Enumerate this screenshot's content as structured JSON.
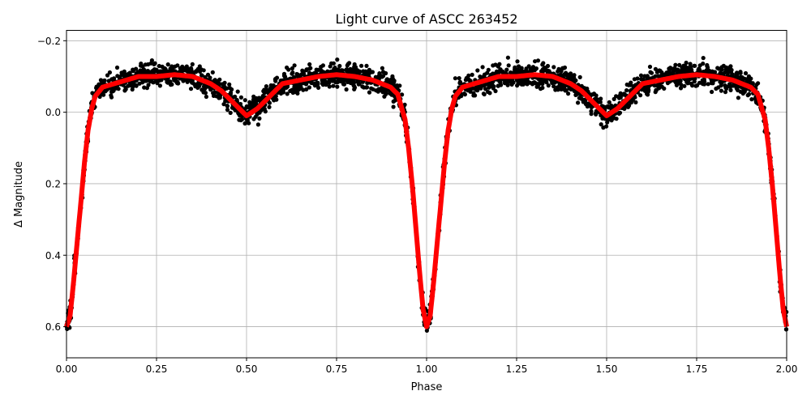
{
  "chart_data": {
    "type": "scatter",
    "title": "Light curve of ASCC 263452",
    "xlabel": "Phase",
    "ylabel": "Δ Magnitude",
    "xlim": [
      0.0,
      2.0
    ],
    "ylim": [
      0.687,
      -0.229
    ],
    "y_inverted": true,
    "grid": true,
    "xticks": [
      "0.00",
      "0.25",
      "0.50",
      "0.75",
      "1.00",
      "1.25",
      "1.50",
      "1.75",
      "2.00"
    ],
    "yticks": [
      "−0.2",
      "0.0",
      "0.2",
      "0.4",
      "0.6"
    ],
    "series": [
      {
        "kind": "scatter",
        "color": "#000000",
        "note_phase_repeats": true
      },
      {
        "kind": "line",
        "color": "#ff0000",
        "phase": [
          0,
          0.01,
          0.02,
          0.03,
          0.04,
          0.05,
          0.06,
          0.07,
          0.08,
          0.1,
          0.15,
          0.2,
          0.25,
          0.3,
          0.35,
          0.4,
          0.43,
          0.47,
          0.5,
          0.53,
          0.57,
          0.6,
          0.65,
          0.7,
          0.75,
          0.8,
          0.85,
          0.9,
          0.92,
          0.94,
          0.95,
          0.96,
          0.97,
          0.98,
          0.99,
          1.0
        ],
        "magnitude": [
          0.6,
          0.57,
          0.47,
          0.36,
          0.25,
          0.14,
          0.05,
          -0.01,
          -0.045,
          -0.07,
          -0.085,
          -0.1,
          -0.1,
          -0.105,
          -0.1,
          -0.08,
          -0.06,
          -0.02,
          0.01,
          -0.01,
          -0.05,
          -0.08,
          -0.09,
          -0.1,
          -0.105,
          -0.1,
          -0.09,
          -0.07,
          -0.05,
          0.02,
          0.1,
          0.2,
          0.32,
          0.44,
          0.55,
          0.6
        ]
      }
    ]
  }
}
